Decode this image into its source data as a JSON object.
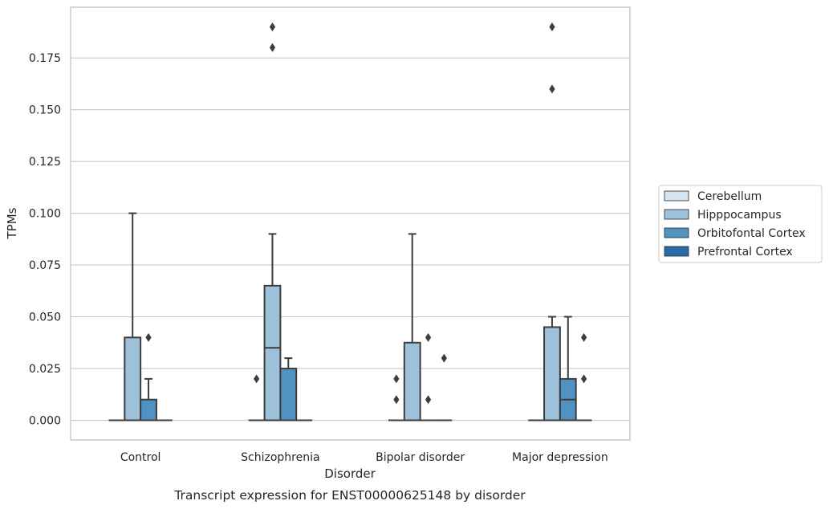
{
  "chart_data": {
    "type": "box",
    "xlabel": "Disorder",
    "ylabel": "TPMs",
    "caption": "Transcript expression for ENST00000625148 by disorder",
    "ylim": [
      -0.0095,
      0.1995
    ],
    "yticks": [
      "0.000",
      "0.025",
      "0.050",
      "0.075",
      "0.100",
      "0.125",
      "0.150",
      "0.175"
    ],
    "ytick_values": [
      0,
      0.025,
      0.05,
      0.075,
      0.1,
      0.125,
      0.15,
      0.175
    ],
    "grid": true,
    "legend_position": "right",
    "categories": [
      "Control",
      "Schizophrenia",
      "Bipolar disorder",
      "Major depression"
    ],
    "series": [
      {
        "name": "Cerebellum",
        "color": "#d3e4f2",
        "boxes": [
          {
            "q1": 0,
            "median": 0,
            "q3": 0,
            "whislo": 0,
            "whishi": 0,
            "fliers": []
          },
          {
            "q1": 0,
            "median": 0,
            "q3": 0,
            "whislo": 0,
            "whishi": 0,
            "fliers": [
              0.02
            ]
          },
          {
            "q1": 0,
            "median": 0,
            "q3": 0,
            "whislo": 0,
            "whishi": 0,
            "fliers": [
              0.01,
              0.02
            ]
          },
          {
            "q1": 0,
            "median": 0,
            "q3": 0,
            "whislo": 0,
            "whishi": 0,
            "fliers": []
          }
        ]
      },
      {
        "name": "Hipppocampus",
        "color": "#9cc1d9",
        "boxes": [
          {
            "q1": 0,
            "median": 0,
            "q3": 0.04,
            "whislo": 0,
            "whishi": 0.1,
            "fliers": []
          },
          {
            "q1": 0,
            "median": 0.035,
            "q3": 0.065,
            "whislo": 0,
            "whishi": 0.09,
            "fliers": [
              0.18,
              0.19
            ]
          },
          {
            "q1": 0,
            "median": 0,
            "q3": 0.0375,
            "whislo": 0,
            "whishi": 0.09,
            "fliers": []
          },
          {
            "q1": 0,
            "median": 0,
            "q3": 0.045,
            "whislo": 0,
            "whishi": 0.05,
            "fliers": [
              0.16,
              0.19
            ]
          }
        ]
      },
      {
        "name": "Orbitofontal Cortex",
        "color": "#5092c1",
        "boxes": [
          {
            "q1": 0,
            "median": 0,
            "q3": 0.01,
            "whislo": 0,
            "whishi": 0.02,
            "fliers": [
              0.04
            ]
          },
          {
            "q1": 0,
            "median": 0,
            "q3": 0.025,
            "whislo": 0,
            "whishi": 0.03,
            "fliers": []
          },
          {
            "q1": 0,
            "median": 0,
            "q3": 0,
            "whislo": 0,
            "whishi": 0,
            "fliers": [
              0.01,
              0.04
            ]
          },
          {
            "q1": 0,
            "median": 0.01,
            "q3": 0.02,
            "whislo": 0,
            "whishi": 0.05,
            "fliers": []
          }
        ]
      },
      {
        "name": "Prefrontal Cortex",
        "color": "#2a6aa6",
        "boxes": [
          {
            "q1": 0,
            "median": 0,
            "q3": 0,
            "whislo": 0,
            "whishi": 0,
            "fliers": []
          },
          {
            "q1": 0,
            "median": 0,
            "q3": 0,
            "whislo": 0,
            "whishi": 0,
            "fliers": []
          },
          {
            "q1": 0,
            "median": 0,
            "q3": 0,
            "whislo": 0,
            "whishi": 0,
            "fliers": [
              0.03
            ]
          },
          {
            "q1": 0,
            "median": 0,
            "q3": 0,
            "whislo": 0,
            "whishi": 0,
            "fliers": [
              0.02,
              0.04
            ]
          }
        ]
      }
    ]
  }
}
